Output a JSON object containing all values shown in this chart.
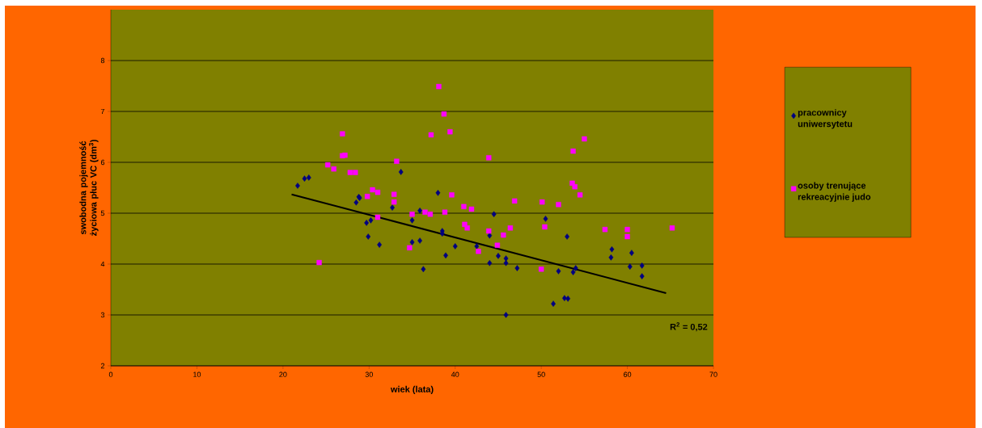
{
  "chart_data": {
    "type": "scatter",
    "xlabel": "wiek (lata)",
    "ylabel": "swobodna pojemność życiowa płuc VC (dm$^{3}$)",
    "xlim": [
      0,
      70
    ],
    "ylim": [
      2,
      9
    ],
    "xticks": [
      0,
      10,
      20,
      30,
      40,
      50,
      60,
      70
    ],
    "yticks": [
      2,
      3,
      4,
      5,
      6,
      7,
      8
    ],
    "grid": "y",
    "legend": "right",
    "series": [
      {
        "name": "pracownicy uniwersytetu",
        "color": "#000080",
        "marker": "diamond",
        "x": [
          21.7,
          22.5,
          23.0,
          28.5,
          28.8,
          28.9,
          29.7,
          29.9,
          30.2,
          31.2,
          32.7,
          33.7,
          35.0,
          35.0,
          35.9,
          35.9,
          36.3,
          38.0,
          38.5,
          38.5,
          38.9,
          40.0,
          42.5,
          44.0,
          44.0,
          44.5,
          45.0,
          45.9,
          45.9,
          45.9,
          47.2,
          50.5,
          51.4,
          52.0,
          52.7,
          53.0,
          53.1,
          53.7,
          54.0,
          58.1,
          58.2,
          60.3,
          60.5,
          61.7,
          61.7
        ],
        "values": [
          5.54,
          5.68,
          5.7,
          5.21,
          5.32,
          5.3,
          4.81,
          4.54,
          4.86,
          4.38,
          5.11,
          5.81,
          4.86,
          4.43,
          5.05,
          4.46,
          3.9,
          5.4,
          4.65,
          4.6,
          4.17,
          4.35,
          4.35,
          4.56,
          4.02,
          4.98,
          4.16,
          4.11,
          4.02,
          3.0,
          3.92,
          4.89,
          3.22,
          3.86,
          3.33,
          4.54,
          3.32,
          3.84,
          3.92,
          4.13,
          4.29,
          3.95,
          4.22,
          3.97,
          3.76
        ]
      },
      {
        "name": "osoby trenujące rekreacyjnie judo",
        "color": "#ff00ff",
        "marker": "square",
        "x": [
          24.2,
          25.2,
          25.9,
          26.9,
          26.9,
          27.2,
          27.8,
          28.4,
          29.8,
          30.4,
          31.0,
          31.0,
          32.9,
          32.9,
          33.2,
          34.7,
          35.0,
          36.5,
          37.1,
          37.2,
          38.1,
          38.7,
          38.8,
          39.4,
          39.6,
          41.0,
          41.1,
          41.4,
          41.9,
          42.7,
          43.9,
          43.9,
          44.9,
          45.6,
          46.4,
          46.9,
          50.0,
          50.1,
          50.4,
          52.0,
          53.6,
          53.7,
          53.9,
          54.5,
          55.0,
          57.4,
          60.0,
          60.0,
          65.2
        ],
        "values": [
          4.03,
          5.95,
          5.87,
          6.56,
          6.13,
          6.14,
          5.8,
          5.8,
          5.33,
          5.46,
          5.41,
          4.92,
          5.37,
          5.22,
          6.02,
          4.32,
          4.98,
          5.02,
          4.98,
          6.54,
          7.49,
          6.95,
          5.02,
          6.6,
          5.36,
          5.13,
          4.78,
          4.71,
          5.08,
          4.25,
          6.09,
          4.65,
          4.37,
          4.57,
          4.71,
          5.24,
          3.9,
          5.22,
          4.73,
          5.17,
          5.59,
          6.22,
          5.52,
          5.36,
          6.46,
          4.68,
          4.68,
          4.54,
          4.71
        ]
      },
      {
        "type": "line",
        "color": "#000000",
        "marker": "none",
        "line_style": "solid",
        "x": [
          21,
          64.5
        ],
        "values": [
          5.37,
          3.43
        ]
      }
    ],
    "annotations": [
      "R$^{2}$ = 0,52"
    ]
  }
}
